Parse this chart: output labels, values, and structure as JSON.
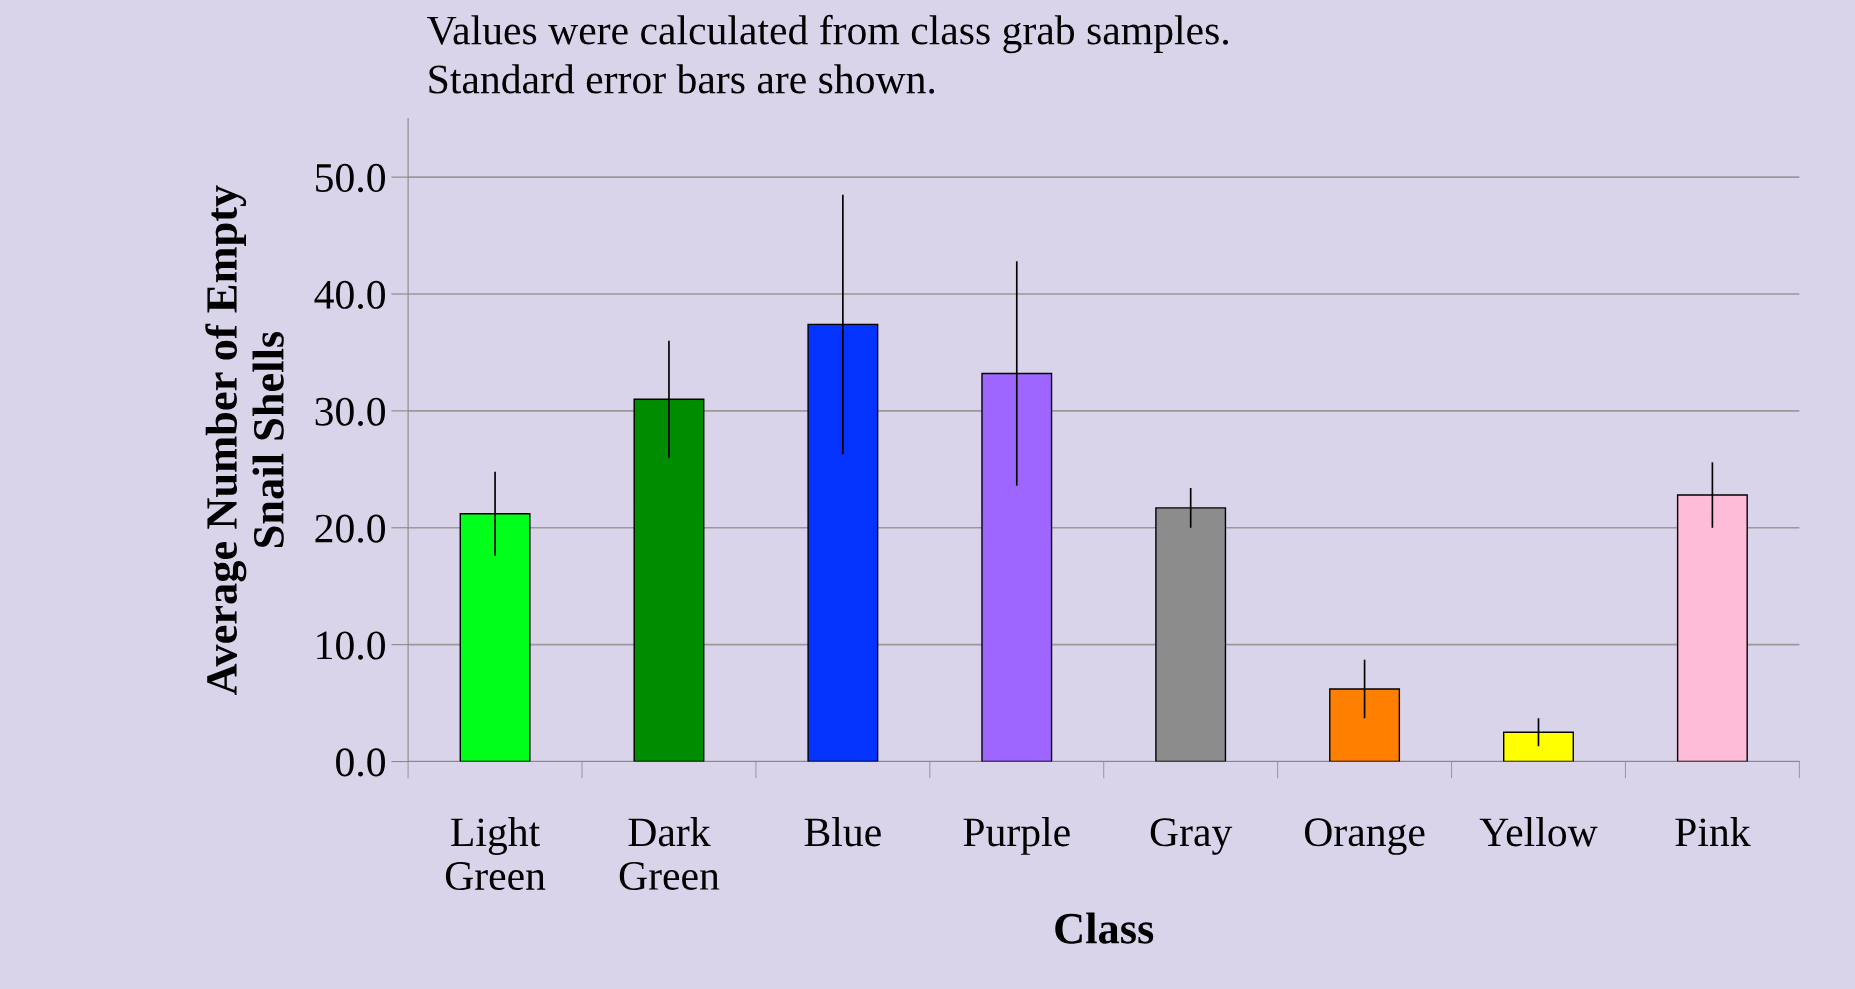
{
  "chart_data": {
    "type": "bar",
    "annotations": [
      "Values were calculated from class grab samples.",
      "Standard error bars are shown."
    ],
    "xlabel": "Class",
    "ylabel": "Average Number of Empty\nSnail Shells",
    "categories": [
      "Light\nGreen",
      "Dark\nGreen",
      "Blue",
      "Purple",
      "Gray",
      "Orange",
      "Yellow",
      "Pink"
    ],
    "values": [
      21.2,
      31.0,
      37.4,
      33.2,
      21.7,
      6.2,
      2.5,
      22.8
    ],
    "errors": [
      3.6,
      5.0,
      11.1,
      9.6,
      1.7,
      2.5,
      1.2,
      2.8
    ],
    "colors": [
      "#00ff1a",
      "#008c00",
      "#0433ff",
      "#9f66ff",
      "#8c8c8c",
      "#ff7f00",
      "#ffff00",
      "#ffbcd9"
    ],
    "ylim": [
      0,
      55
    ],
    "yticks": [
      {
        "value": 0,
        "label": "0.0"
      },
      {
        "value": 10,
        "label": "10.0"
      },
      {
        "value": 20,
        "label": "20.0"
      },
      {
        "value": 30,
        "label": "30.0"
      },
      {
        "value": 40,
        "label": "40.0"
      },
      {
        "value": 50,
        "label": "50.0"
      }
    ],
    "grid": "y",
    "legend": false
  }
}
